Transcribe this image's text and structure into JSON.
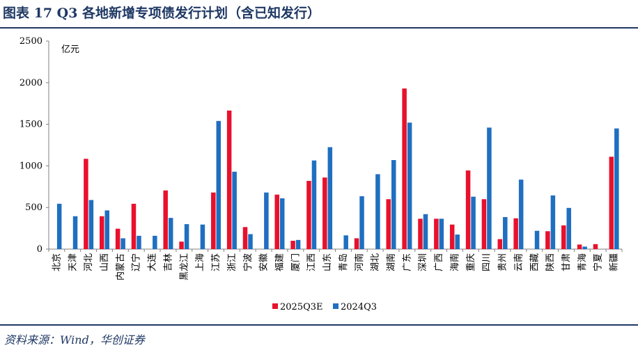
{
  "header": {
    "title": "图表 17 Q3 各地新增专项债发行计划（含已知发行）"
  },
  "footer": {
    "source": "资料来源：Wind，华创证券"
  },
  "chart_data": {
    "type": "bar",
    "unit_label": "亿元",
    "ylim": [
      0,
      2500
    ],
    "yticks": [
      0,
      500,
      1000,
      1500,
      2000,
      2500
    ],
    "legend_position": "bottom-center",
    "grid": false,
    "categories": [
      "北京",
      "天津",
      "河北",
      "山西",
      "内蒙古",
      "辽宁",
      "大连",
      "吉林",
      "黑龙江",
      "上海",
      "江苏",
      "浙江",
      "宁波",
      "安徽",
      "福建",
      "厦门",
      "江西",
      "山东",
      "青岛",
      "河南",
      "湖北",
      "湖南",
      "广东",
      "深圳",
      "广西",
      "海南",
      "重庆",
      "四川",
      "贵州",
      "云南",
      "西藏",
      "陕西",
      "甘肃",
      "青海",
      "宁夏",
      "新疆"
    ],
    "series": [
      {
        "name": "2025Q3E",
        "color": "#e8112d",
        "values": [
          0,
          0,
          1085,
          395,
          245,
          545,
          0,
          705,
          90,
          0,
          680,
          1665,
          265,
          0,
          655,
          100,
          820,
          860,
          0,
          130,
          0,
          600,
          1930,
          365,
          365,
          295,
          945,
          600,
          120,
          370,
          0,
          215,
          285,
          55,
          60,
          1110
        ]
      },
      {
        "name": "2024Q3",
        "color": "#1f6fc0",
        "values": [
          545,
          395,
          590,
          465,
          130,
          160,
          160,
          375,
          300,
          295,
          1540,
          930,
          180,
          680,
          610,
          110,
          1065,
          1225,
          165,
          635,
          900,
          1070,
          1520,
          420,
          365,
          175,
          630,
          1460,
          385,
          835,
          220,
          645,
          495,
          30,
          0,
          1450
        ]
      }
    ]
  }
}
